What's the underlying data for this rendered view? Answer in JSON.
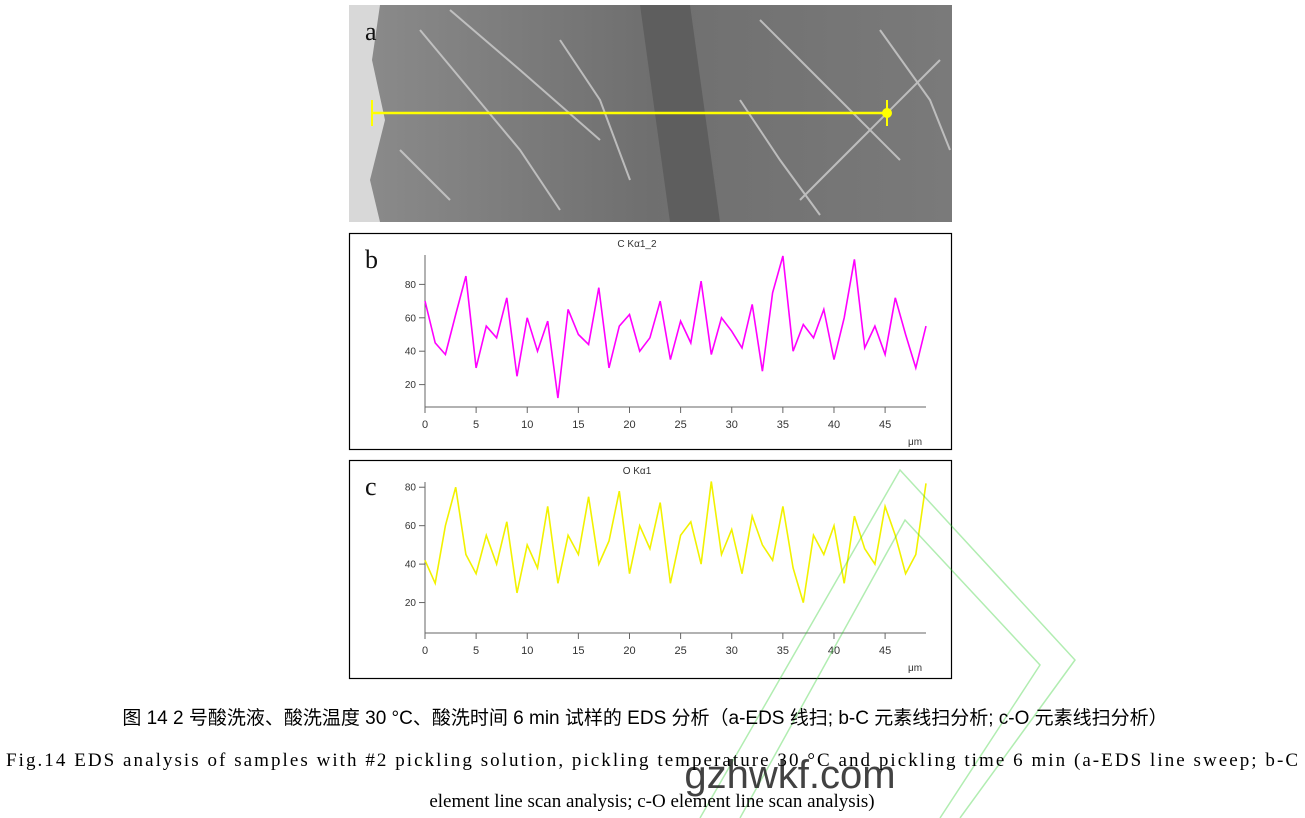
{
  "image_panel": {
    "label": "a"
  },
  "chart_data": [
    {
      "type": "line",
      "panel": "b",
      "title": "C Kα1_2",
      "color": "#ff00ff",
      "x_unit": "μm",
      "x": [
        0,
        1,
        2,
        3,
        4,
        5,
        6,
        7,
        8,
        9,
        10,
        11,
        12,
        13,
        14,
        15,
        16,
        17,
        18,
        19,
        20,
        21,
        22,
        23,
        24,
        25,
        26,
        27,
        28,
        29,
        30,
        31,
        32,
        33,
        34,
        35,
        36,
        37,
        38,
        39,
        40,
        41,
        42,
        43,
        44,
        45,
        46,
        47,
        48,
        49
      ],
      "values": [
        70,
        45,
        38,
        62,
        85,
        30,
        55,
        48,
        72,
        25,
        60,
        40,
        58,
        12,
        65,
        50,
        44,
        78,
        30,
        55,
        62,
        40,
        48,
        70,
        35,
        58,
        45,
        82,
        38,
        60,
        52,
        42,
        68,
        28,
        75,
        97,
        40,
        56,
        48,
        65,
        35,
        60,
        95,
        42,
        55,
        38,
        72,
        50,
        30,
        55
      ],
      "xlim": [
        0,
        49
      ],
      "xticks": [
        0,
        5,
        10,
        15,
        20,
        25,
        30,
        35,
        40,
        45
      ],
      "ylim": [
        0,
        100
      ],
      "yticks": [
        20,
        40,
        60,
        80
      ]
    },
    {
      "type": "line",
      "panel": "c",
      "title": "O Kα1",
      "color": "#f2f200",
      "x_unit": "μm",
      "x": [
        0,
        1,
        2,
        3,
        4,
        5,
        6,
        7,
        8,
        9,
        10,
        11,
        12,
        13,
        14,
        15,
        16,
        17,
        18,
        19,
        20,
        21,
        22,
        23,
        24,
        25,
        26,
        27,
        28,
        29,
        30,
        31,
        32,
        33,
        34,
        35,
        36,
        37,
        38,
        39,
        40,
        41,
        42,
        43,
        44,
        45,
        46,
        47,
        48,
        49
      ],
      "values": [
        42,
        30,
        60,
        80,
        45,
        35,
        55,
        40,
        62,
        25,
        50,
        38,
        70,
        30,
        55,
        45,
        75,
        40,
        52,
        78,
        35,
        60,
        48,
        72,
        30,
        55,
        62,
        40,
        83,
        45,
        58,
        35,
        65,
        50,
        42,
        70,
        38,
        20,
        55,
        45,
        60,
        30,
        65,
        48,
        40,
        70,
        55,
        35,
        45,
        82
      ],
      "xlim": [
        0,
        49
      ],
      "xticks": [
        0,
        5,
        10,
        15,
        20,
        25,
        30,
        35,
        40,
        45
      ],
      "ylim": [
        0,
        90
      ],
      "yticks": [
        20,
        40,
        60,
        80
      ]
    }
  ],
  "caption": {
    "zh": "图 14 2 号酸洗液、酸洗温度 30 °C、酸洗时间 6 min 试样的 EDS 分析（a-EDS 线扫; b-C 元素线扫分析; c-O 元素线扫分析）",
    "en": [
      "Fig.14 EDS analysis of samples with #2 pickling solution, pickling temperature 30 °C and pickling time 6 min (a-EDS line sweep; b-C",
      "element line scan analysis; c-O element line scan analysis)"
    ]
  },
  "watermark": "gzhwkf.com"
}
